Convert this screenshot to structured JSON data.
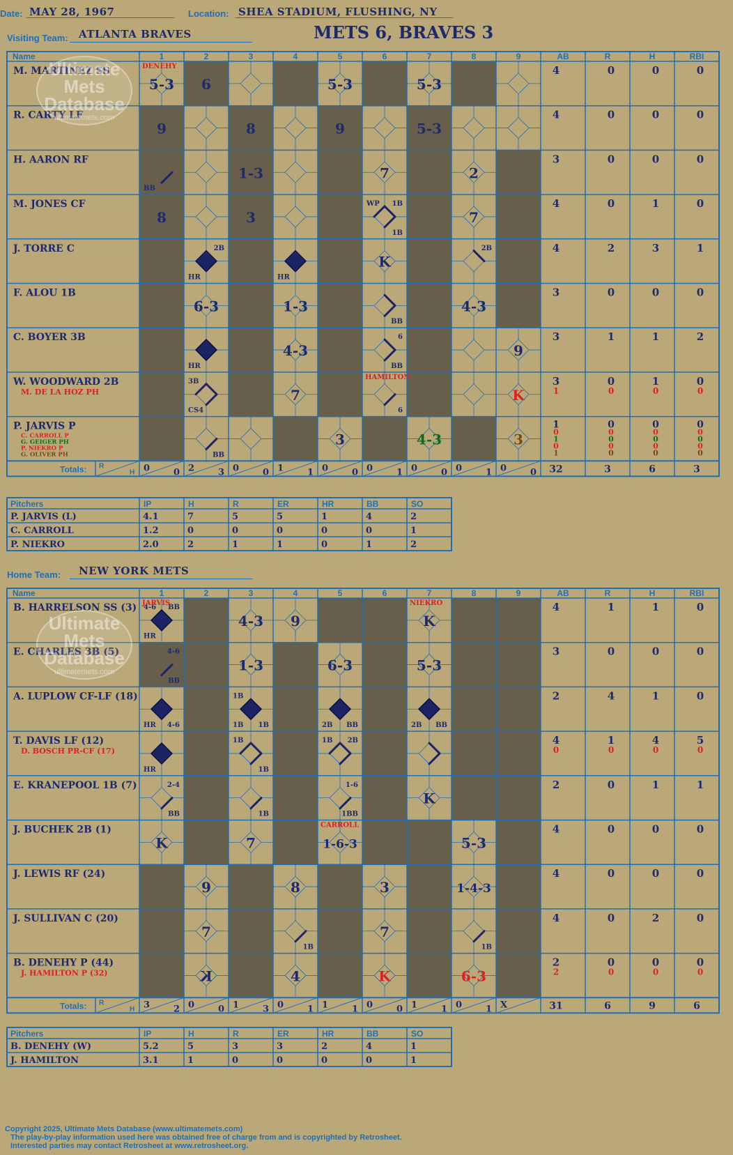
{
  "header": {
    "date_label": "Date:",
    "date": "MAY 28, 1967",
    "location_label": "Location:",
    "location": "SHEA STADIUM, FLUSHING, NY",
    "visiting_label": "Visiting Team:",
    "visiting_team": "ATLANTA BRAVES",
    "result": "METS 6, BRAVES 3",
    "home_label": "Home Team:",
    "home_team": "NEW YORK METS"
  },
  "watermark": {
    "line1": "Ultimate",
    "line2": "Mets",
    "line3": "Database",
    "site": "ultimatemets.com"
  },
  "columns": {
    "name": "Name",
    "innings": [
      "1",
      "2",
      "3",
      "4",
      "5",
      "6",
      "7",
      "8",
      "9"
    ],
    "stats": [
      "AB",
      "R",
      "H",
      "RBI"
    ]
  },
  "totals_label": "Totals:",
  "pitcher_columns": [
    "Pitchers",
    "IP",
    "H",
    "R",
    "ER",
    "HR",
    "BB",
    "SO"
  ],
  "colors": {
    "shade": "#675f4b",
    "cell": "#baa878",
    "grid": "#1f6fb8",
    "ink": "#1e2a6e",
    "red": "#e02020",
    "green": "#0f6b1e",
    "brown": "#7a4a12"
  },
  "visitors": {
    "shaded": [
      [
        2,
        4,
        6,
        8
      ],
      [
        1,
        3,
        5,
        7
      ],
      [
        1,
        3,
        5,
        7,
        9
      ],
      [
        1,
        3,
        5,
        7,
        9
      ],
      [
        1,
        3,
        5,
        7,
        9
      ],
      [
        1,
        3,
        5,
        7,
        9
      ],
      [
        1,
        3,
        5,
        7
      ],
      [
        1,
        3,
        5,
        7
      ],
      [
        1,
        4,
        6,
        8
      ]
    ],
    "batters": [
      {
        "name": "M. MARTINEZ SS",
        "subs": [],
        "ab": [
          "4"
        ],
        "r": [
          "0"
        ],
        "h": [
          "0"
        ],
        "rbi": [
          "0"
        ],
        "cells": [
          {
            "inn": 1,
            "text": "5-3",
            "note": "DENEHY",
            "note_color": "red"
          },
          {
            "inn": 2,
            "text": "6"
          },
          {
            "inn": 5,
            "text": "5-3"
          },
          {
            "inn": 7,
            "text": "5-3"
          }
        ]
      },
      {
        "name": "R. CARTY LF",
        "subs": [],
        "ab": [
          "4"
        ],
        "r": [
          "0"
        ],
        "h": [
          "0"
        ],
        "rbi": [
          "0"
        ],
        "cells": [
          {
            "inn": 1,
            "text": "9"
          },
          {
            "inn": 3,
            "text": "8"
          },
          {
            "inn": 5,
            "text": "9"
          },
          {
            "inn": 7,
            "text": "5-3"
          }
        ]
      },
      {
        "name": "H. AARON RF",
        "subs": [],
        "ab": [
          "3"
        ],
        "r": [
          "0"
        ],
        "h": [
          "0"
        ],
        "rbi": [
          "0"
        ],
        "cells": [
          {
            "inn": 1,
            "text": "",
            "bl": "BB",
            "paths": [
              1
            ]
          },
          {
            "inn": 3,
            "text": "1-3"
          },
          {
            "inn": 6,
            "text": "7"
          },
          {
            "inn": 8,
            "text": "2"
          }
        ]
      },
      {
        "name": "M. JONES CF",
        "subs": [],
        "ab": [
          "4"
        ],
        "r": [
          "0"
        ],
        "h": [
          "1"
        ],
        "rbi": [
          "0"
        ],
        "cells": [
          {
            "inn": 1,
            "text": "8"
          },
          {
            "inn": 3,
            "text": "3"
          },
          {
            "inn": 6,
            "text": "",
            "tl": "WP",
            "tr": "1B",
            "br": "1B",
            "paths": [
              1,
              2,
              3
            ]
          },
          {
            "inn": 8,
            "text": "7"
          }
        ]
      },
      {
        "name": "J. TORRE C",
        "subs": [],
        "ab": [
          "4"
        ],
        "r": [
          "2"
        ],
        "h": [
          "3"
        ],
        "rbi": [
          "1"
        ],
        "cells": [
          {
            "inn": 2,
            "text": "",
            "tr": "2B",
            "bl": "HR",
            "filled": true
          },
          {
            "inn": 4,
            "text": "",
            "bl": "HR",
            "filled": true
          },
          {
            "inn": 6,
            "text": "K"
          },
          {
            "inn": 8,
            "text": "",
            "tr": "2B",
            "paths": [
              2
            ]
          }
        ]
      },
      {
        "name": "F. ALOU 1B",
        "subs": [],
        "ab": [
          "3"
        ],
        "r": [
          "0"
        ],
        "h": [
          "0"
        ],
        "rbi": [
          "0"
        ],
        "cells": [
          {
            "inn": 2,
            "text": "6-3"
          },
          {
            "inn": 4,
            "text": "1-3"
          },
          {
            "inn": 6,
            "text": "",
            "br": "BB",
            "paths": [
              1,
              2
            ]
          },
          {
            "inn": 8,
            "text": "4-3"
          }
        ]
      },
      {
        "name": "C. BOYER 3B",
        "subs": [],
        "ab": [
          "3"
        ],
        "r": [
          "1"
        ],
        "h": [
          "1"
        ],
        "rbi": [
          "2"
        ],
        "cells": [
          {
            "inn": 2,
            "text": "",
            "bl": "HR",
            "filled": true
          },
          {
            "inn": 4,
            "text": "4-3"
          },
          {
            "inn": 6,
            "text": "",
            "tr": "6",
            "br": "BB",
            "paths": [
              1,
              2
            ]
          },
          {
            "inn": 9,
            "text": "9"
          }
        ]
      },
      {
        "name": "W. WOODWARD 2B",
        "subs": [
          {
            "text": "M. DE LA HOZ PH",
            "color": "red"
          }
        ],
        "ab": [
          "3",
          "1"
        ],
        "r": [
          "0",
          "0"
        ],
        "h": [
          "1",
          "0"
        ],
        "rbi": [
          "0",
          "0"
        ],
        "cells": [
          {
            "inn": 2,
            "text": "",
            "tl": "3B",
            "bl": "CS4",
            "paths": [
              1,
              2,
              3
            ]
          },
          {
            "inn": 4,
            "text": "7"
          },
          {
            "inn": 6,
            "text": "",
            "br": "6",
            "note": "HAMILTON",
            "note_color": "red",
            "paths": [
              1
            ]
          },
          {
            "inn": 9,
            "text": "K",
            "color": "red"
          }
        ]
      },
      {
        "name": "P. JARVIS P",
        "subs": [
          {
            "text": "C. CARROLL P",
            "color": "red"
          },
          {
            "text": "G. GEIGER PH",
            "color": "green"
          },
          {
            "text": "P. NIEKRO P",
            "color": "red"
          },
          {
            "text": "G. OLIVER PH",
            "color": "brown"
          }
        ],
        "ab": [
          "1",
          "0",
          "1",
          "0",
          "1"
        ],
        "r": [
          "0",
          "0",
          "0",
          "0",
          "0"
        ],
        "h": [
          "0",
          "0",
          "0",
          "0",
          "0"
        ],
        "rbi": [
          "0",
          "0",
          "0",
          "0",
          "0"
        ],
        "cells": [
          {
            "inn": 2,
            "text": "",
            "br": "BB",
            "paths": [
              1
            ]
          },
          {
            "inn": 5,
            "text": "3"
          },
          {
            "inn": 7,
            "text": "4-3",
            "color": "green"
          },
          {
            "inn": 9,
            "text": "3",
            "color": "brown"
          }
        ]
      }
    ],
    "totals": {
      "innings": [
        [
          "0",
          "0"
        ],
        [
          "2",
          "3"
        ],
        [
          "0",
          "0"
        ],
        [
          "1",
          "1"
        ],
        [
          "0",
          "0"
        ],
        [
          "0",
          "1"
        ],
        [
          "0",
          "0"
        ],
        [
          "0",
          "1"
        ],
        [
          "0",
          "0"
        ]
      ],
      "ab": "32",
      "r": "3",
      "h": "6",
      "rbi": "3"
    },
    "pitchers": [
      {
        "name": "P. JARVIS (L)",
        "ip": "4.1",
        "h": "7",
        "r": "5",
        "er": "5",
        "hr": "1",
        "bb": "4",
        "so": "2"
      },
      {
        "name": "C. CARROLL",
        "ip": "1.2",
        "h": "0",
        "r": "0",
        "er": "0",
        "hr": "0",
        "bb": "0",
        "so": "1"
      },
      {
        "name": "P. NIEKRO",
        "ip": "2.0",
        "h": "2",
        "r": "1",
        "er": "1",
        "hr": "0",
        "bb": "1",
        "so": "2"
      }
    ]
  },
  "home": {
    "shaded": [
      [
        2,
        5,
        6,
        8,
        9
      ],
      [
        1,
        2,
        4,
        6,
        8,
        9
      ],
      [
        2,
        4,
        6,
        8,
        9
      ],
      [
        2,
        4,
        6,
        8,
        9
      ],
      [
        2,
        4,
        6,
        8,
        9
      ],
      [
        2,
        4,
        6,
        7,
        9
      ],
      [
        1,
        3,
        5,
        7,
        9
      ],
      [
        1,
        3,
        5,
        7,
        9
      ],
      [
        1,
        3,
        5,
        7,
        9
      ]
    ],
    "batters": [
      {
        "name": "B. HARRELSON SS (3)",
        "subs": [],
        "ab": [
          "4"
        ],
        "r": [
          "1"
        ],
        "h": [
          "1"
        ],
        "rbi": [
          "0"
        ],
        "cells": [
          {
            "inn": 1,
            "text": "",
            "tl": "4-6",
            "tr": "BB",
            "bl": "HR",
            "note": "JARVIS",
            "note_color": "red",
            "filled": true
          },
          {
            "inn": 3,
            "text": "4-3"
          },
          {
            "inn": 4,
            "text": "9"
          },
          {
            "inn": 7,
            "text": "K",
            "note": "NIEKRO",
            "note_color": "red"
          }
        ]
      },
      {
        "name": "E. CHARLES 3B (5)",
        "subs": [],
        "ab": [
          "3"
        ],
        "r": [
          "0"
        ],
        "h": [
          "0"
        ],
        "rbi": [
          "0"
        ],
        "cells": [
          {
            "inn": 1,
            "text": "",
            "tr": "4-6",
            "br": "BB",
            "paths": [
              1
            ]
          },
          {
            "inn": 3,
            "text": "1-3"
          },
          {
            "inn": 5,
            "text": "6-3"
          },
          {
            "inn": 7,
            "text": "5-3"
          }
        ]
      },
      {
        "name": "A. LUPLOW CF-LF (18)",
        "subs": [],
        "ab": [
          "2"
        ],
        "r": [
          "4"
        ],
        "h": [
          "1"
        ],
        "rbi": [
          "0"
        ],
        "cells": [
          {
            "inn": 1,
            "text": "",
            "bl": "HR",
            "br": "4-6",
            "filled": true
          },
          {
            "inn": 3,
            "text": "",
            "tl": "1B",
            "bl": "1B",
            "br": "1B",
            "filled": true
          },
          {
            "inn": 5,
            "text": "",
            "bl": "2B",
            "br": "BB",
            "filled": true
          },
          {
            "inn": 7,
            "text": "",
            "bl": "2B",
            "br": "BB",
            "filled": true
          }
        ]
      },
      {
        "name": "T. DAVIS LF (12)",
        "subs": [
          {
            "text": "D. BOSCH PR-CF (17)",
            "color": "red"
          }
        ],
        "ab": [
          "4",
          "0"
        ],
        "r": [
          "1",
          "0"
        ],
        "h": [
          "4",
          "0"
        ],
        "rbi": [
          "5",
          "0"
        ],
        "cells": [
          {
            "inn": 1,
            "text": "",
            "bl": "HR",
            "filled": true
          },
          {
            "inn": 3,
            "text": "",
            "tl": "1B",
            "br": "1B",
            "paths": [
              1,
              2,
              3
            ]
          },
          {
            "inn": 5,
            "text": "",
            "tl": "1B",
            "tr": "2B",
            "paths": [
              1,
              2,
              3
            ]
          },
          {
            "inn": 7,
            "text": "",
            "paths": [
              1,
              2
            ]
          }
        ]
      },
      {
        "name": "E. KRANEPOOL 1B (7)",
        "subs": [],
        "ab": [
          "2"
        ],
        "r": [
          "0"
        ],
        "h": [
          "1"
        ],
        "rbi": [
          "1"
        ],
        "cells": [
          {
            "inn": 1,
            "text": "",
            "tr": "2-4",
            "br": "BB",
            "paths": [
              1
            ]
          },
          {
            "inn": 3,
            "text": "",
            "br": "1B",
            "paths": [
              1
            ]
          },
          {
            "inn": 5,
            "text": "",
            "tr": "1-6",
            "br": "1BB",
            "paths": [
              1
            ]
          },
          {
            "inn": 7,
            "text": "K"
          }
        ]
      },
      {
        "name": "J. BUCHEK 2B (1)",
        "subs": [],
        "ab": [
          "4"
        ],
        "r": [
          "0"
        ],
        "h": [
          "0"
        ],
        "rbi": [
          "0"
        ],
        "cells": [
          {
            "inn": 1,
            "text": "K"
          },
          {
            "inn": 3,
            "text": "7"
          },
          {
            "inn": 5,
            "text": "1-6-3",
            "note": "CARROLL",
            "note_color": "red"
          },
          {
            "inn": 8,
            "text": "5-3"
          }
        ]
      },
      {
        "name": "J. LEWIS RF (24)",
        "subs": [],
        "ab": [
          "4"
        ],
        "r": [
          "0"
        ],
        "h": [
          "0"
        ],
        "rbi": [
          "0"
        ],
        "cells": [
          {
            "inn": 2,
            "text": "9"
          },
          {
            "inn": 4,
            "text": "8"
          },
          {
            "inn": 6,
            "text": "3"
          },
          {
            "inn": 8,
            "text": "1-4-3"
          }
        ]
      },
      {
        "name": "J. SULLIVAN C (20)",
        "subs": [],
        "ab": [
          "4"
        ],
        "r": [
          "0"
        ],
        "h": [
          "2"
        ],
        "rbi": [
          "0"
        ],
        "cells": [
          {
            "inn": 2,
            "text": "7"
          },
          {
            "inn": 4,
            "text": "",
            "br": "1B",
            "paths": [
              1
            ]
          },
          {
            "inn": 6,
            "text": "7"
          },
          {
            "inn": 8,
            "text": "",
            "br": "1B",
            "paths": [
              1
            ]
          }
        ]
      },
      {
        "name": "B. DENEHY P (44)",
        "subs": [
          {
            "text": "J. HAMILTON P (32)",
            "color": "red"
          }
        ],
        "ab": [
          "2",
          "2"
        ],
        "r": [
          "0",
          "0"
        ],
        "h": [
          "0",
          "0"
        ],
        "rbi": [
          "0",
          "0"
        ],
        "cells": [
          {
            "inn": 2,
            "text": "K",
            "mirror": true
          },
          {
            "inn": 4,
            "text": "4"
          },
          {
            "inn": 6,
            "text": "K",
            "color": "red"
          },
          {
            "inn": 8,
            "text": "6-3",
            "color": "red"
          }
        ]
      }
    ],
    "totals": {
      "innings": [
        [
          "3",
          "2"
        ],
        [
          "0",
          "0"
        ],
        [
          "1",
          "3"
        ],
        [
          "0",
          "1"
        ],
        [
          "1",
          "1"
        ],
        [
          "0",
          "0"
        ],
        [
          "1",
          "1"
        ],
        [
          "0",
          "1"
        ],
        [
          "X",
          ""
        ]
      ],
      "ab": "31",
      "r": "6",
      "h": "9",
      "rbi": "6"
    },
    "pitchers": [
      {
        "name": "B. DENEHY (W)",
        "ip": "5.2",
        "h": "5",
        "r": "3",
        "er": "3",
        "hr": "2",
        "bb": "4",
        "so": "1"
      },
      {
        "name": "J. HAMILTON",
        "ip": "3.1",
        "h": "1",
        "r": "0",
        "er": "0",
        "hr": "0",
        "bb": "0",
        "so": "1"
      }
    ]
  },
  "footer": {
    "copyright": "Copyright 2025, Ultimate Mets Database (www.ultimatemets.com)",
    "line2": "The play-by-play information used here was obtained free of charge from and is copyrighted by Retrosheet.",
    "line3": "Interested parties may contact Retrosheet at www.retrosheet.org."
  }
}
